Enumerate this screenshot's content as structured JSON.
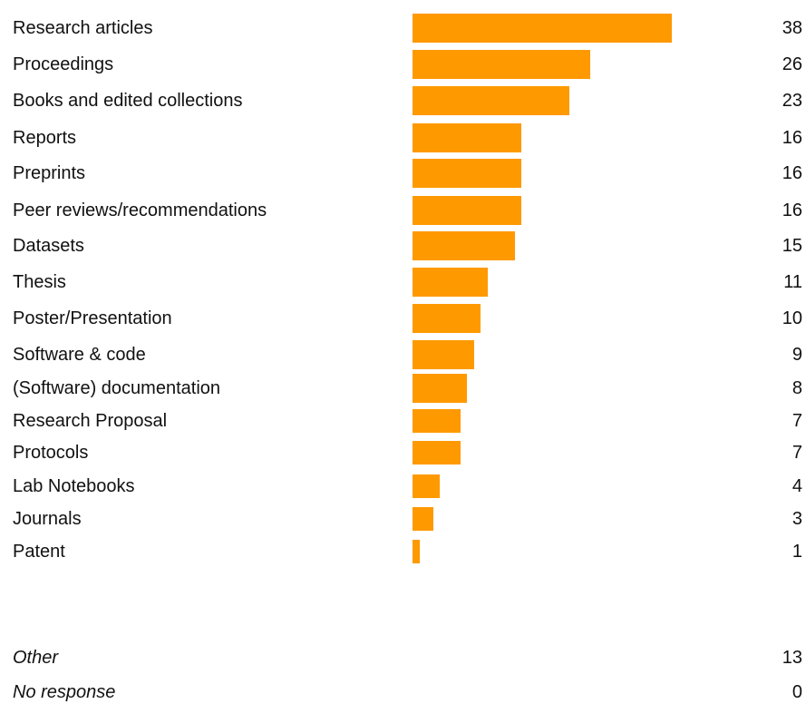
{
  "chart_data": {
    "type": "bar",
    "orientation": "horizontal",
    "categories": [
      "Research articles",
      "Proceedings",
      "Books and edited collections",
      "Reports",
      "Preprints",
      "Peer reviews/recommendations",
      "Datasets",
      "Thesis",
      "Poster/Presentation",
      "Software & code",
      "(Software) documentation",
      "Research Proposal",
      "Protocols",
      "Lab Notebooks",
      "Journals",
      "Patent"
    ],
    "values": [
      38,
      26,
      23,
      16,
      16,
      16,
      15,
      11,
      10,
      9,
      8,
      7,
      7,
      4,
      3,
      1
    ],
    "bar_color": "#ff9900",
    "xlim": [
      0,
      38
    ],
    "grid": false,
    "legend": "none",
    "extra_rows": [
      {
        "label": "Other",
        "value": "13"
      },
      {
        "label": "No response",
        "value": "0"
      }
    ]
  }
}
